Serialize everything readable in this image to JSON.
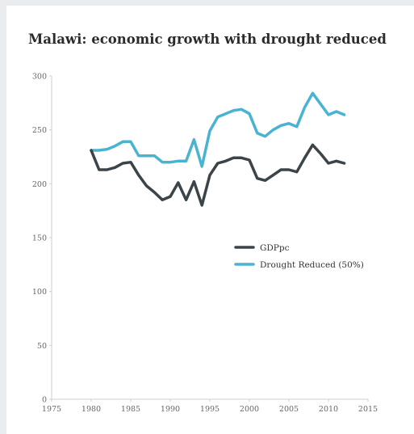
{
  "chart_data": {
    "type": "line",
    "title": "Malawi: economic growth with drought reduced",
    "xlabel": "",
    "ylabel": "",
    "xlim": [
      1975,
      2015
    ],
    "ylim": [
      0,
      300
    ],
    "x_ticks": [
      1975,
      1980,
      1985,
      1990,
      1995,
      2000,
      2005,
      2010,
      2015
    ],
    "y_ticks": [
      0,
      50,
      100,
      150,
      200,
      250,
      300
    ],
    "grid": false,
    "legend_position": "center-right",
    "series": [
      {
        "name": "GDPpc",
        "color": "#3b4448",
        "x": [
          1980,
          1981,
          1982,
          1983,
          1984,
          1985,
          1986,
          1987,
          1988,
          1989,
          1990,
          1991,
          1992,
          1993,
          1994,
          1995,
          1996,
          1997,
          1998,
          1999,
          2000,
          2001,
          2002,
          2003,
          2004,
          2005,
          2006,
          2007,
          2008,
          2009,
          2010,
          2011,
          2012
        ],
        "values": [
          231,
          213,
          213,
          215,
          219,
          220,
          208,
          198,
          192,
          185,
          188,
          201,
          185,
          202,
          180,
          208,
          219,
          221,
          224,
          224,
          222,
          205,
          203,
          208,
          213,
          213,
          211,
          224,
          236,
          228,
          219,
          221,
          219
        ]
      },
      {
        "name": "Drought Reduced (50%)",
        "color": "#4ab3d1",
        "x": [
          1980,
          1981,
          1982,
          1983,
          1984,
          1985,
          1986,
          1987,
          1988,
          1989,
          1990,
          1991,
          1992,
          1993,
          1994,
          1995,
          1996,
          1997,
          1998,
          1999,
          2000,
          2001,
          2002,
          2003,
          2004,
          2005,
          2006,
          2007,
          2008,
          2009,
          2010,
          2011,
          2012
        ],
        "values": [
          231,
          231,
          232,
          235,
          239,
          239,
          226,
          226,
          226,
          220,
          220,
          221,
          221,
          241,
          216,
          249,
          262,
          265,
          268,
          269,
          265,
          247,
          244,
          250,
          254,
          256,
          253,
          271,
          284,
          274,
          264,
          267,
          264
        ]
      }
    ]
  }
}
